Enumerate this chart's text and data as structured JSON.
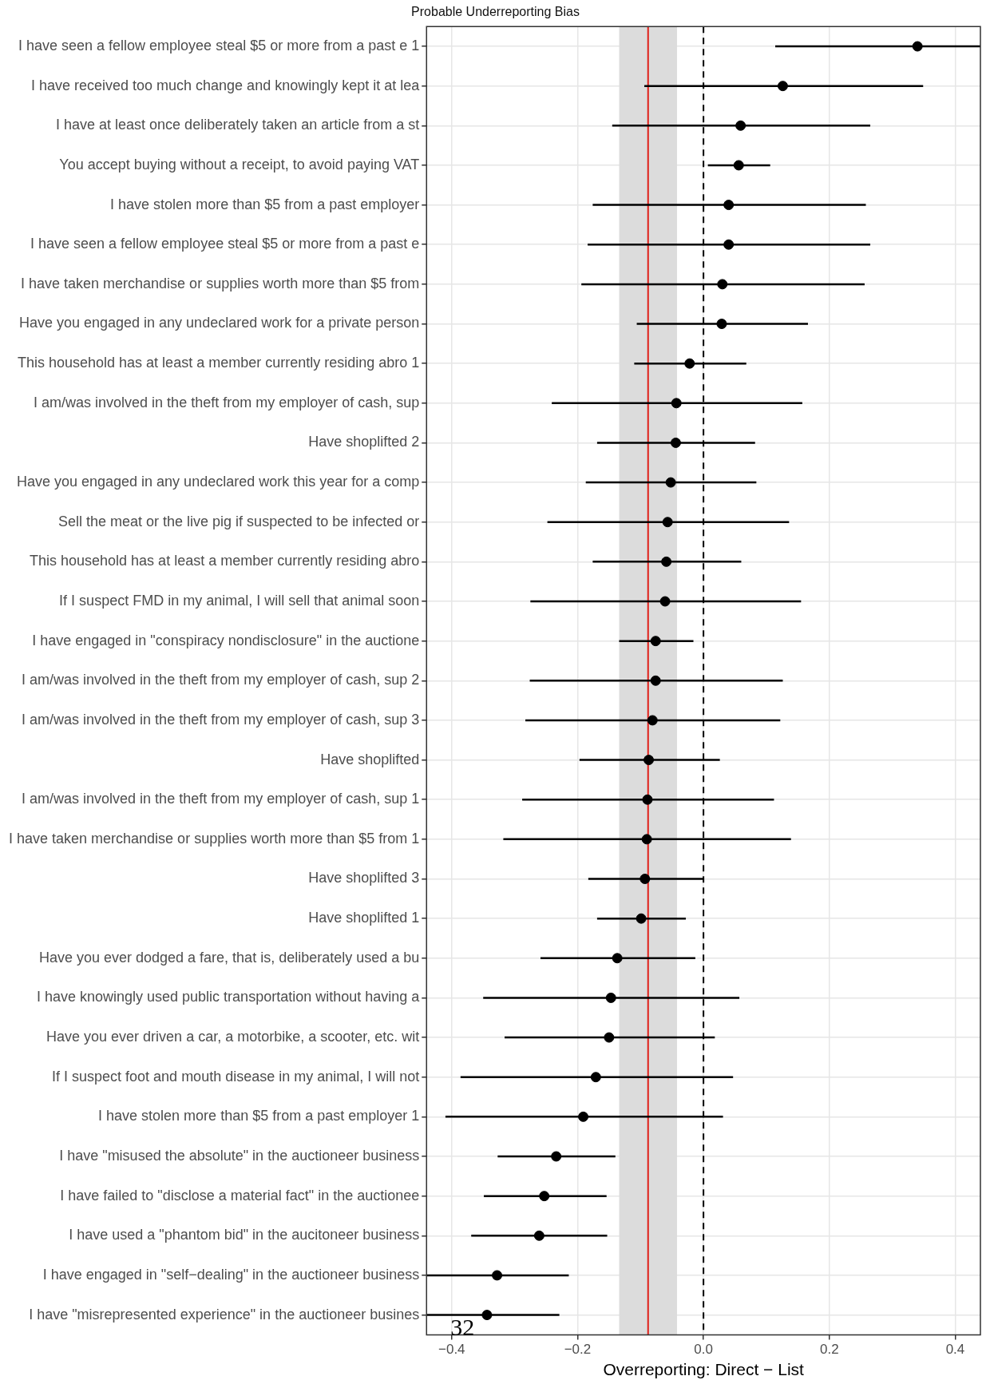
{
  "chart_data": {
    "type": "scatter",
    "orientation": "horizontal",
    "title": "Probable Underreporting Bias",
    "xlabel": "Overreporting: Direct − List",
    "categories": [
      "I have seen a fellow employee steal $5 or more from a past e 1",
      "I have received too much change and knowingly kept it at lea",
      "I have at least once deliberately taken an article from a st",
      "You accept buying without a receipt, to avoid paying VAT",
      "I have stolen more than $5 from a past employer",
      "I have seen a fellow employee steal $5 or more from a past e",
      "I have taken merchandise or supplies worth more than $5 from",
      "Have you engaged in any undeclared work for a private person",
      "This household has at least a member currently residing abro 1",
      "I am/was involved in the theft from my employer of cash, sup",
      "Have shoplifted 2",
      "Have you engaged in any undeclared work this year for a comp",
      "Sell the meat or the live pig if suspected to be infected or",
      "This household has at least a member currently residing abro",
      "If I suspect FMD in my animal, I will sell that animal soon",
      "I have engaged in \"conspiracy nondisclosure\" in the auctione",
      "I am/was involved in the theft from my employer of cash, sup 2",
      "I am/was involved in the theft from my employer of cash, sup 3",
      "Have shoplifted",
      "I am/was involved in the theft from my employer of cash, sup 1",
      "I have taken merchandise or supplies worth more than $5 from 1",
      "Have shoplifted 3",
      "Have shoplifted 1",
      "Have you ever dodged a fare, that is, deliberately used a bu",
      "I have knowingly used public transportation without having a",
      "Have you ever driven a car, a motorbike, a scooter, etc. wit",
      "If I suspect foot and mouth disease in my animal, I will not",
      "I have stolen more than $5 from a past employer 1",
      "I have \"misused the absolute\" in the auctioneer business",
      "I have failed to \"disclose a material fact\" in the auctionee",
      "I have used a \"phantom bid\" in the aucitoneer business",
      "I have engaged in \"self−dealing\" in the auctioneer business",
      "I have \"misrepresented experience\" in the auctioneer busines"
    ],
    "series": [
      {
        "color": "#000000",
        "values": [
          0.34,
          0.126,
          0.059,
          0.056,
          0.04,
          0.04,
          0.03,
          0.029,
          -0.022,
          -0.043,
          -0.044,
          -0.052,
          -0.057,
          -0.059,
          -0.061,
          -0.076,
          -0.076,
          -0.081,
          -0.087,
          -0.089,
          -0.09,
          -0.093,
          -0.099,
          -0.137,
          -0.147,
          -0.15,
          -0.171,
          -0.191,
          -0.234,
          -0.253,
          -0.261,
          -0.328,
          -0.344
        ],
        "errors": [
          [
            0.114,
            0.44
          ],
          [
            -0.094,
            0.349
          ],
          [
            -0.145,
            0.265
          ],
          [
            0.007,
            0.106
          ],
          [
            -0.176,
            0.258
          ],
          [
            -0.184,
            0.265
          ],
          [
            -0.194,
            0.256
          ],
          [
            -0.106,
            0.166
          ],
          [
            -0.11,
            0.068
          ],
          [
            -0.241,
            0.157
          ],
          [
            -0.169,
            0.082
          ],
          [
            -0.187,
            0.084
          ],
          [
            -0.248,
            0.136
          ],
          [
            -0.176,
            0.06
          ],
          [
            -0.275,
            0.155
          ],
          [
            -0.134,
            -0.016
          ],
          [
            -0.276,
            0.126
          ],
          [
            -0.283,
            0.122
          ],
          [
            -0.197,
            0.026
          ],
          [
            -0.288,
            0.112
          ],
          [
            -0.318,
            0.139
          ],
          [
            -0.183,
            0.0
          ],
          [
            -0.169,
            -0.028
          ],
          [
            -0.259,
            -0.013
          ],
          [
            -0.35,
            0.057
          ],
          [
            -0.316,
            0.018
          ],
          [
            -0.386,
            0.047
          ],
          [
            -0.41,
            0.031
          ],
          [
            -0.327,
            -0.14
          ],
          [
            -0.349,
            -0.154
          ],
          [
            -0.369,
            -0.153
          ],
          [
            -0.44,
            -0.214
          ],
          [
            -0.44,
            -0.229
          ]
        ]
      }
    ],
    "xlim": [
      -0.44,
      0.44
    ],
    "xticks": [
      {
        "value": -0.4,
        "label": "−0.4"
      },
      {
        "value": -0.2,
        "label": "−0.2"
      },
      {
        "value": 0,
        "label": "0.0"
      },
      0.2,
      0.4
    ],
    "bands": [
      {
        "axis": "x",
        "from": -0.134,
        "to": -0.042,
        "color": "#dcdcdc"
      }
    ],
    "ref_lines": [
      {
        "axis": "x",
        "value": -0.088,
        "color": "#e0201a",
        "line_style": "solid"
      },
      {
        "axis": "x",
        "value": 0,
        "color": "#000000",
        "line_style": "dashed"
      }
    ],
    "annotations": [
      "32"
    ],
    "grid": true,
    "legend": false,
    "marker": "circle"
  }
}
